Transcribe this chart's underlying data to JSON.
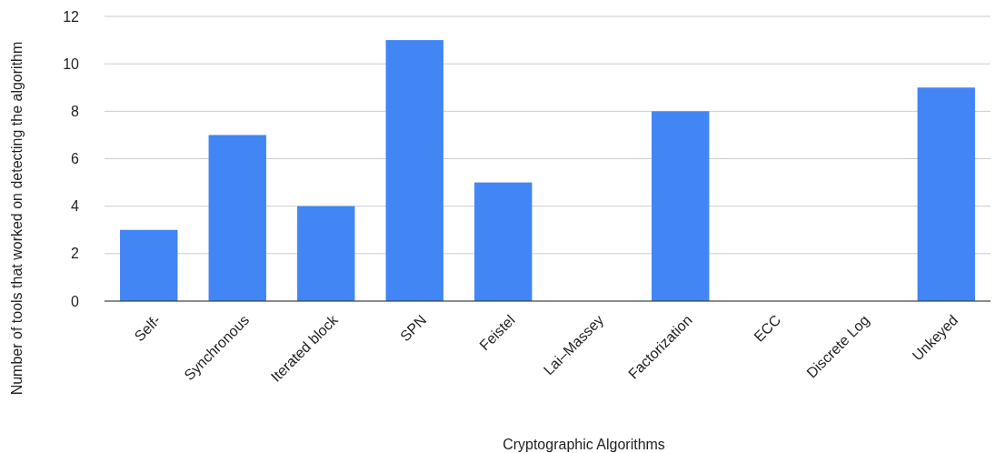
{
  "chart_data": {
    "type": "bar",
    "xlabel": "Cryptographic Algorithms",
    "ylabel": "Number of tools that worked on detecting the algorithm",
    "categories": [
      "Self-",
      "Synchronous",
      "Iterated block",
      "SPN",
      "Feistel",
      "Lai–Massey",
      "Factorization",
      "ECC",
      "Discrete Log",
      "Unkeyed"
    ],
    "values": [
      3,
      7,
      4,
      11,
      5,
      0,
      8,
      0,
      0,
      9
    ],
    "color": "#4285f4",
    "ylim": [
      0,
      12
    ],
    "yticks": [
      0,
      2,
      4,
      6,
      8,
      10,
      12
    ],
    "grid": "y"
  }
}
